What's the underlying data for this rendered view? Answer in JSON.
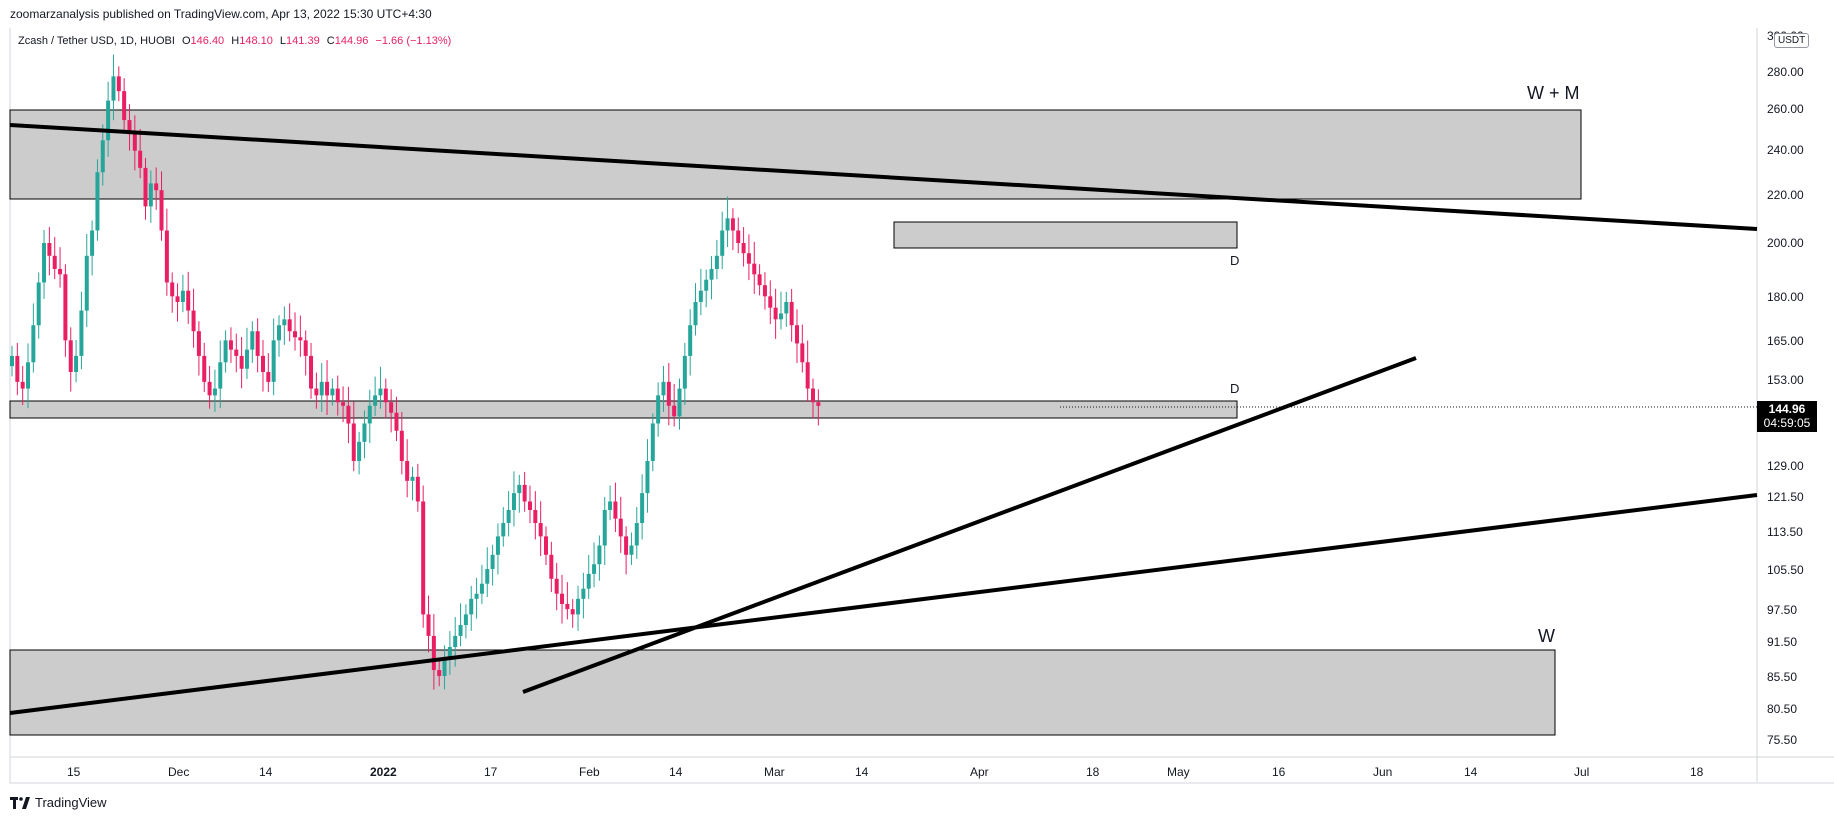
{
  "header": {
    "publisher_line": "zoomarzanalysis published on TradingView.com, Apr 13, 2022 15:30 UTC+4:30",
    "symbol_line": "Zcash / Tether USD, 1D, HUOBI",
    "ohlc": {
      "open_label": "O",
      "open": "146.40",
      "high_label": "H",
      "high": "148.10",
      "low_label": "L",
      "low": "141.39",
      "close_label": "C",
      "close": "144.96",
      "change": "−1.66 (−1.13%)"
    }
  },
  "price_scale": {
    "unit": "USDT",
    "ticks": [
      "300.00",
      "280.00",
      "260.00",
      "240.00",
      "220.00",
      "200.00",
      "180.00",
      "165.00",
      "153.00",
      "129.00",
      "121.50",
      "113.50",
      "105.50",
      "97.50",
      "91.50",
      "85.50",
      "80.50",
      "75.50"
    ],
    "last_price": "144.96",
    "countdown": "04:59:05"
  },
  "time_scale": {
    "ticks": [
      "15",
      "Dec",
      "14",
      "2022",
      "17",
      "Feb",
      "14",
      "Mar",
      "14",
      "Apr",
      "18",
      "May",
      "16",
      "Jun",
      "14",
      "Jul",
      "18"
    ]
  },
  "annotations": {
    "top_zone_label": "W + M",
    "resistance_label": "D",
    "support_label": "D",
    "bottom_zone_label": "W"
  },
  "footer": {
    "brand": "TradingView"
  },
  "colors": {
    "up": "#26a69a",
    "down": "#e91e63",
    "zone_fill": "#cccccc",
    "line": "#000000"
  },
  "chart_data": {
    "type": "candlestick",
    "title": "Zcash / Tether USD, 1D, HUOBI",
    "y_scale": "log",
    "ylim": [
      72,
      300
    ],
    "x_range": [
      "2021-11-08",
      "2022-07-27"
    ],
    "grid": false,
    "candles_approx": [
      {
        "date": "2021-11-26",
        "o": 265,
        "h": 300,
        "l": 248,
        "c": 278
      },
      {
        "date": "2021-12-04",
        "o": 228,
        "h": 230,
        "l": 142,
        "c": 178
      },
      {
        "date": "2022-01-24",
        "o": 96,
        "h": 99,
        "l": 80,
        "c": 86
      },
      {
        "date": "2022-02-24",
        "o": 95,
        "h": 103,
        "l": 82,
        "c": 98
      },
      {
        "date": "2022-03-28",
        "o": 205,
        "h": 216,
        "l": 196,
        "c": 200
      },
      {
        "date": "2022-04-13",
        "o": 146.4,
        "h": 148.1,
        "l": 141.39,
        "c": 144.96
      }
    ]
  }
}
